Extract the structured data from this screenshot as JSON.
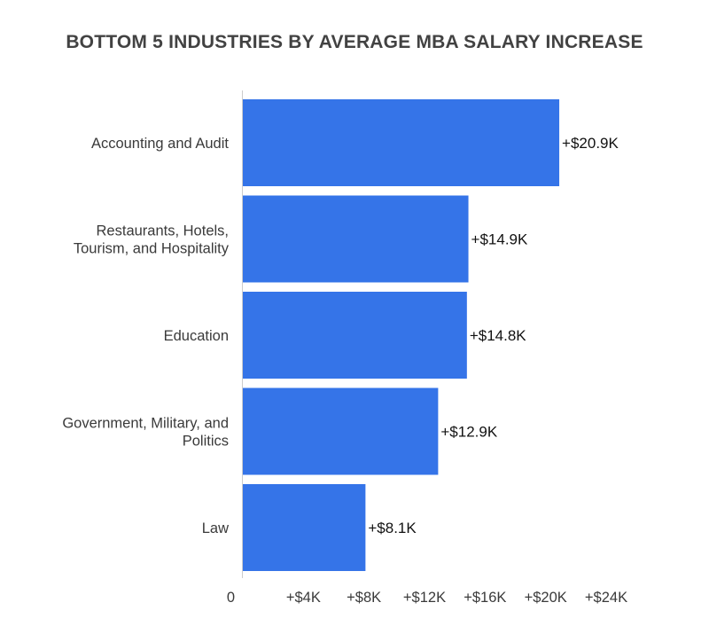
{
  "chart_data": {
    "type": "bar",
    "orientation": "horizontal",
    "title": "BOTTOM 5 INDUSTRIES BY AVERAGE MBA SALARY INCREASE",
    "categories": [
      [
        "Accounting and Audit"
      ],
      [
        "Restaurants, Hotels,",
        "Tourism, and Hospitality"
      ],
      [
        "Education"
      ],
      [
        "Government, Military, and",
        "Politics"
      ],
      [
        "Law"
      ]
    ],
    "values": [
      20.9,
      14.9,
      14.8,
      12.9,
      8.1
    ],
    "data_labels": [
      "+$20.9K",
      "+$14.9K",
      "+$14.8K",
      "+$12.9K",
      "+$8.1K"
    ],
    "xlim": [
      0,
      24
    ],
    "x_ticks": [
      0,
      4,
      8,
      12,
      16,
      20,
      24
    ],
    "x_tick_labels": [
      "0",
      "+$4K",
      "+$8K",
      "+$12K",
      "+$16K",
      "+$20K",
      "+$24K"
    ],
    "xlabel": "",
    "ylabel": "",
    "grid": false,
    "legend": "none",
    "bar_color": "#3574e8",
    "axis_color": "#cccccc"
  }
}
